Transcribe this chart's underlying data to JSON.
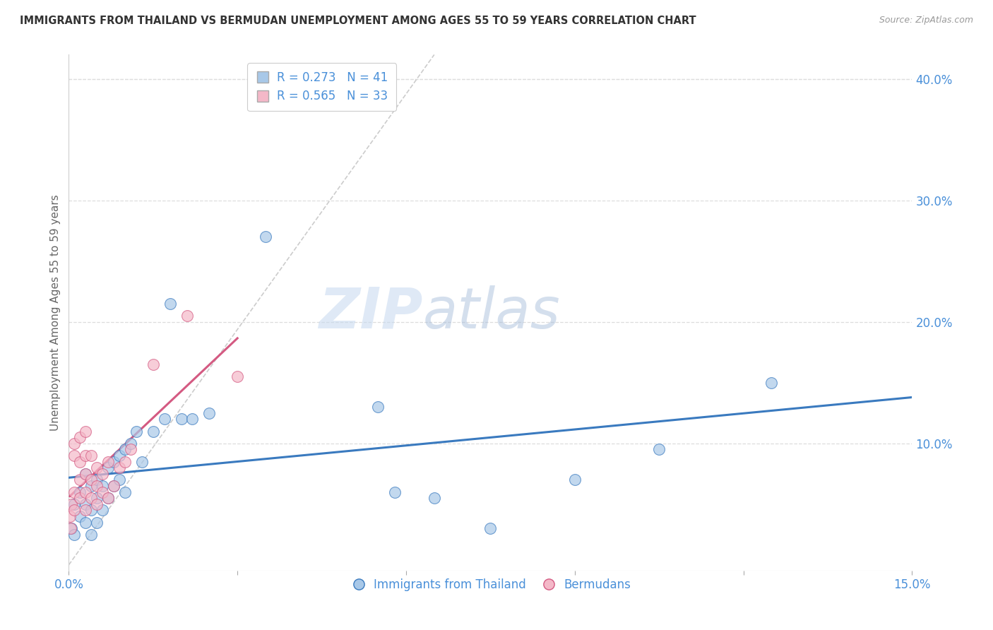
{
  "title": "IMMIGRANTS FROM THAILAND VS BERMUDAN UNEMPLOYMENT AMONG AGES 55 TO 59 YEARS CORRELATION CHART",
  "source": "Source: ZipAtlas.com",
  "ylabel": "Unemployment Among Ages 55 to 59 years",
  "legend_labels": [
    "Immigrants from Thailand",
    "Bermudans"
  ],
  "r_values": [
    0.273,
    0.565
  ],
  "n_values": [
    41,
    33
  ],
  "blue_color": "#a8c8e8",
  "pink_color": "#f4b8c8",
  "trend_blue": "#3a7abf",
  "trend_pink": "#d45a82",
  "axis_label_color": "#4a90d9",
  "xlim": [
    0.0,
    0.15
  ],
  "ylim": [
    -0.005,
    0.42
  ],
  "xticks": [
    0.0,
    0.03,
    0.06,
    0.09,
    0.12,
    0.15
  ],
  "xtick_labels": [
    "0.0%",
    "",
    "",
    "",
    "",
    "15.0%"
  ],
  "yticks_right": [
    0.1,
    0.2,
    0.3,
    0.4
  ],
  "ytick_labels_right": [
    "10.0%",
    "20.0%",
    "30.0%",
    "40.0%"
  ],
  "watermark_zip": "ZIP",
  "watermark_atlas": "atlas",
  "blue_x": [
    0.0005,
    0.001,
    0.001,
    0.002,
    0.002,
    0.003,
    0.003,
    0.003,
    0.004,
    0.004,
    0.004,
    0.005,
    0.005,
    0.005,
    0.006,
    0.006,
    0.007,
    0.007,
    0.008,
    0.008,
    0.009,
    0.009,
    0.01,
    0.01,
    0.011,
    0.012,
    0.013,
    0.015,
    0.017,
    0.018,
    0.02,
    0.022,
    0.025,
    0.035,
    0.055,
    0.058,
    0.065,
    0.075,
    0.09,
    0.105,
    0.125
  ],
  "blue_y": [
    0.03,
    0.05,
    0.025,
    0.06,
    0.04,
    0.075,
    0.05,
    0.035,
    0.065,
    0.045,
    0.025,
    0.07,
    0.055,
    0.035,
    0.065,
    0.045,
    0.08,
    0.055,
    0.085,
    0.065,
    0.09,
    0.07,
    0.095,
    0.06,
    0.1,
    0.11,
    0.085,
    0.11,
    0.12,
    0.215,
    0.12,
    0.12,
    0.125,
    0.27,
    0.13,
    0.06,
    0.055,
    0.03,
    0.07,
    0.095,
    0.15
  ],
  "pink_x": [
    0.0002,
    0.0003,
    0.0005,
    0.001,
    0.001,
    0.001,
    0.001,
    0.002,
    0.002,
    0.002,
    0.002,
    0.003,
    0.003,
    0.003,
    0.003,
    0.003,
    0.004,
    0.004,
    0.004,
    0.005,
    0.005,
    0.005,
    0.006,
    0.006,
    0.007,
    0.007,
    0.008,
    0.009,
    0.01,
    0.011,
    0.015,
    0.021,
    0.03
  ],
  "pink_y": [
    0.04,
    0.03,
    0.05,
    0.045,
    0.06,
    0.09,
    0.1,
    0.055,
    0.07,
    0.085,
    0.105,
    0.045,
    0.06,
    0.075,
    0.09,
    0.11,
    0.055,
    0.07,
    0.09,
    0.05,
    0.065,
    0.08,
    0.06,
    0.075,
    0.085,
    0.055,
    0.065,
    0.08,
    0.085,
    0.095,
    0.165,
    0.205,
    0.155
  ]
}
